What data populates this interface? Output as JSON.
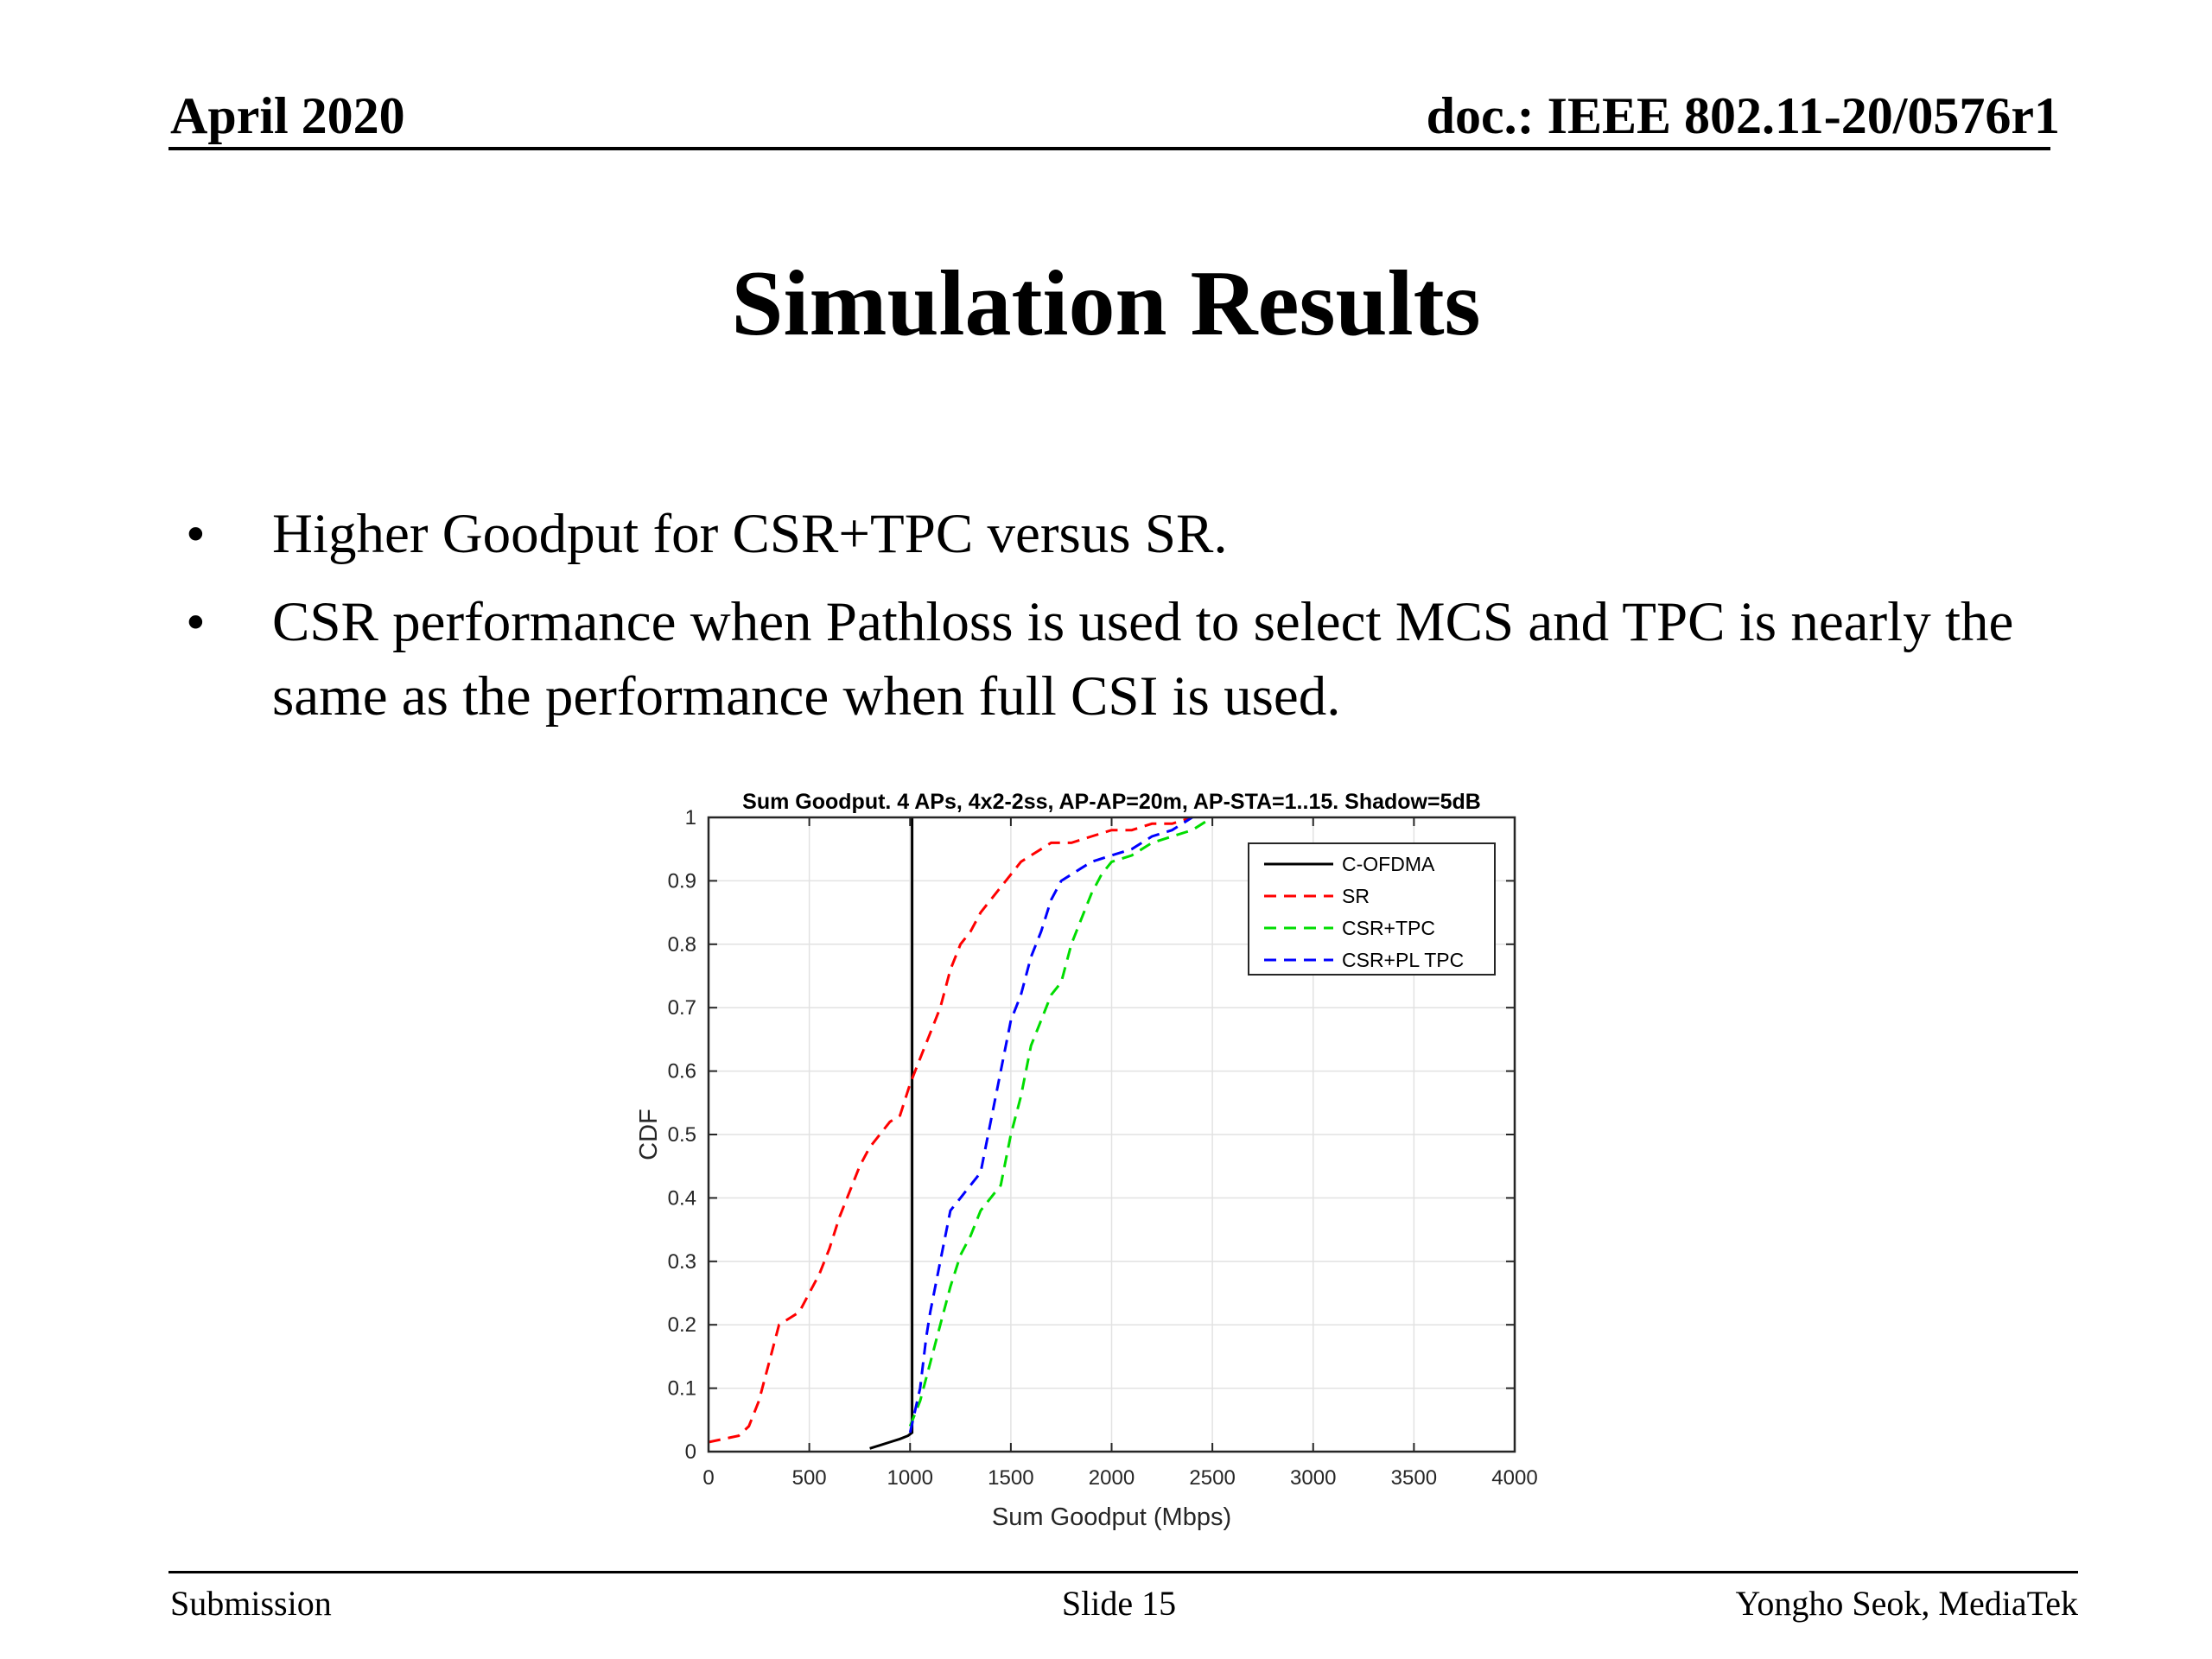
{
  "header": {
    "date": "April 2020",
    "doc": "doc.: IEEE 802.11-20/0576r1"
  },
  "slide": {
    "title": "Simulation Results",
    "bullets": [
      "Higher Goodput for CSR+TPC versus SR.",
      "CSR performance when Pathloss is used to select MCS and TPC is nearly the same as the performance when full CSI is used."
    ],
    "bullet_symbol": "•"
  },
  "footer": {
    "left": "Submission",
    "center": "Slide 15",
    "right": "Yongho Seok, MediaTek"
  },
  "chart_data": {
    "type": "line",
    "title": "Sum Goodput. 4 APs, 4x2-2ss, AP-AP=20m, AP-STA=1..15. Shadow=5dB",
    "xlabel": "Sum Goodput (Mbps)",
    "ylabel": "CDF",
    "xlim": [
      0,
      4000
    ],
    "ylim": [
      0,
      1
    ],
    "xticks": [
      0,
      500,
      1000,
      1500,
      2000,
      2500,
      3000,
      3500,
      4000
    ],
    "yticks": [
      0,
      0.1,
      0.2,
      0.3,
      0.4,
      0.5,
      0.6,
      0.7,
      0.8,
      0.9,
      1
    ],
    "ytick_labels": [
      "0",
      "0.1",
      "0.2",
      "0.3",
      "0.4",
      "0.5",
      "0.6",
      "0.7",
      "0.8",
      "0.9",
      "1"
    ],
    "grid": true,
    "legend_position": "top-right",
    "series": [
      {
        "name": "C-OFDMA",
        "color": "#000000",
        "dash": "solid",
        "x": [
          800,
          850,
          900,
          950,
          990,
          1010,
          1010
        ],
        "y": [
          0.005,
          0.01,
          0.015,
          0.02,
          0.025,
          0.03,
          1.0
        ]
      },
      {
        "name": "SR",
        "color": "#ff0000",
        "dash": "dashed",
        "x": [
          0,
          150,
          200,
          250,
          300,
          350,
          400,
          450,
          500,
          550,
          600,
          650,
          700,
          750,
          800,
          850,
          900,
          950,
          1000,
          1050,
          1100,
          1150,
          1200,
          1250,
          1300,
          1350,
          1400,
          1450,
          1500,
          1550,
          1600,
          1650,
          1700,
          1800,
          1900,
          2000,
          2100,
          2200,
          2300,
          2400
        ],
        "y": [
          0.015,
          0.025,
          0.04,
          0.08,
          0.14,
          0.2,
          0.21,
          0.22,
          0.25,
          0.28,
          0.32,
          0.37,
          0.41,
          0.45,
          0.48,
          0.5,
          0.52,
          0.53,
          0.58,
          0.62,
          0.66,
          0.7,
          0.76,
          0.8,
          0.82,
          0.85,
          0.87,
          0.89,
          0.91,
          0.93,
          0.94,
          0.95,
          0.96,
          0.96,
          0.97,
          0.98,
          0.98,
          0.99,
          0.99,
          1.0
        ]
      },
      {
        "name": "CSR+TPC",
        "color": "#00dd00",
        "dash": "dashed",
        "x": [
          1000,
          1050,
          1100,
          1150,
          1200,
          1250,
          1300,
          1350,
          1400,
          1450,
          1500,
          1550,
          1600,
          1650,
          1700,
          1750,
          1800,
          1850,
          1900,
          1950,
          2000,
          2100,
          2200,
          2300,
          2400,
          2500
        ],
        "y": [
          0.04,
          0.08,
          0.14,
          0.2,
          0.26,
          0.31,
          0.34,
          0.38,
          0.4,
          0.42,
          0.5,
          0.56,
          0.64,
          0.68,
          0.72,
          0.74,
          0.8,
          0.84,
          0.88,
          0.91,
          0.93,
          0.94,
          0.96,
          0.97,
          0.98,
          1.0
        ]
      },
      {
        "name": "CSR+PL TPC",
        "color": "#0000ff",
        "dash": "dashed",
        "x": [
          1000,
          1050,
          1080,
          1100,
          1150,
          1200,
          1250,
          1300,
          1350,
          1400,
          1450,
          1500,
          1550,
          1600,
          1650,
          1700,
          1750,
          1800,
          1850,
          1900,
          2000,
          2100,
          2200,
          2300,
          2400
        ],
        "y": [
          0.03,
          0.1,
          0.18,
          0.22,
          0.3,
          0.38,
          0.4,
          0.42,
          0.44,
          0.52,
          0.6,
          0.68,
          0.72,
          0.78,
          0.82,
          0.87,
          0.9,
          0.91,
          0.92,
          0.93,
          0.94,
          0.95,
          0.97,
          0.98,
          1.0
        ]
      }
    ]
  }
}
